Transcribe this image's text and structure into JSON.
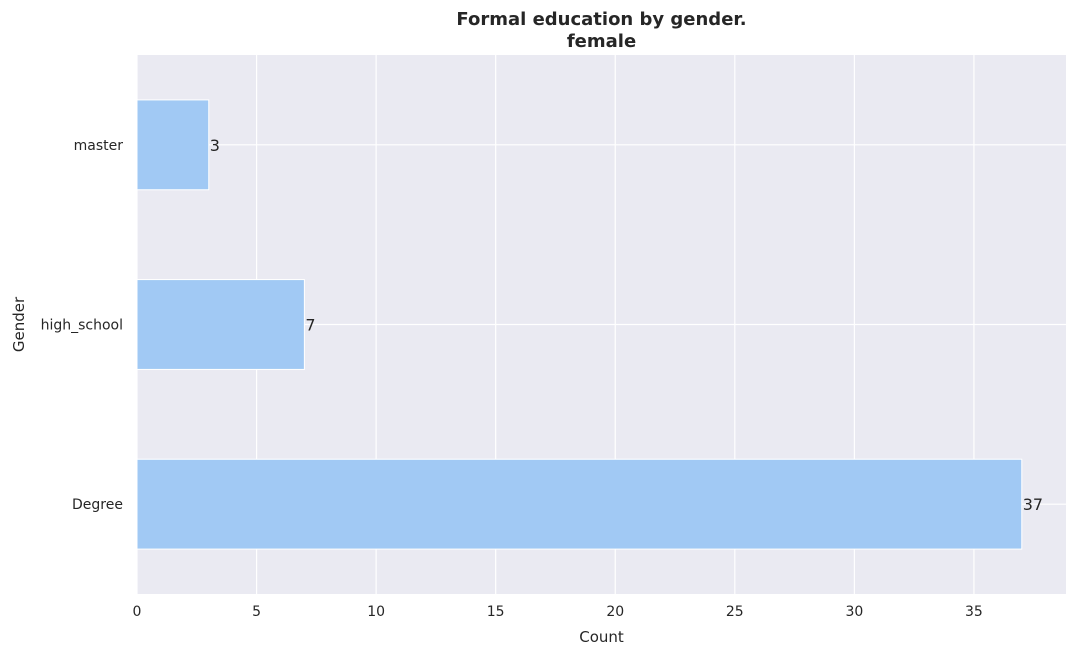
{
  "chart_data": {
    "type": "bar",
    "orientation": "horizontal",
    "title": [
      "Formal education by gender.",
      "female"
    ],
    "xlabel": "Count",
    "ylabel": "Gender",
    "categories": [
      "Degree",
      "high_school",
      "master"
    ],
    "values": [
      37,
      7,
      3
    ],
    "data_labels": [
      "37",
      "7",
      "3"
    ],
    "xlim": [
      0,
      38.85
    ],
    "xticks": [
      0,
      5,
      10,
      15,
      20,
      25,
      30,
      35
    ],
    "grid": true,
    "legend": "none",
    "colors": {
      "bar": "#a1c9f4",
      "plot_background": "#eaeaf2",
      "grid": "#ffffff",
      "text": "#262626"
    }
  }
}
